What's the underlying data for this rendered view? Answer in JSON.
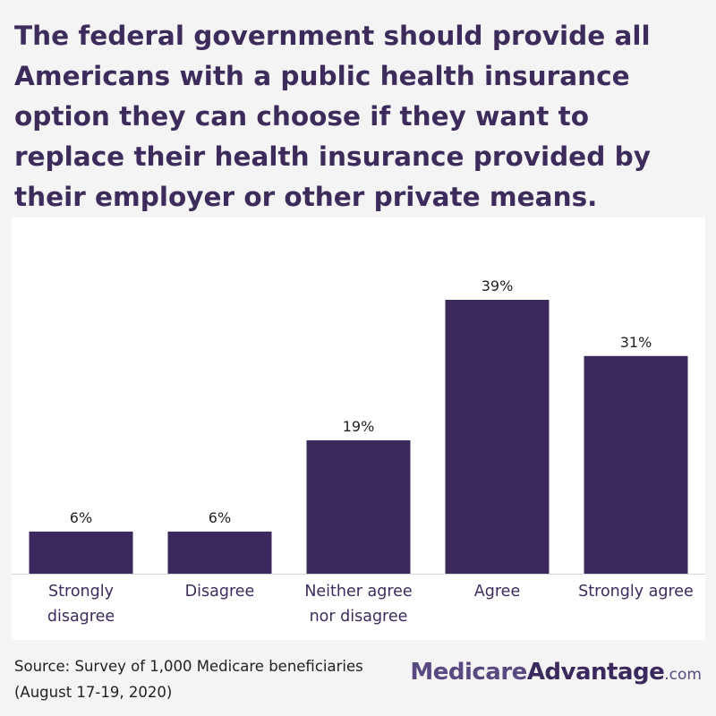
{
  "title": "The federal government should provide all Americans with a public health insurance option they can choose if they want to replace their health insurance provided by their employer or other private means.",
  "source_lines": [
    "Source: Survey of 1,000 Medicare beneficiaries",
    "(August 17-19, 2020)"
  ],
  "brand": {
    "part1": "Medicare",
    "part2": "Advantage",
    "part3": ".com"
  },
  "colors": {
    "bar": "#3b285c",
    "title": "#3d2b5c",
    "brand": "#5a4880"
  },
  "chart_data": {
    "type": "bar",
    "title": "The federal government should provide all Americans with a public health insurance option they can choose if they want to replace their health insurance provided by their employer or other private means.",
    "categories": [
      [
        "Strongly",
        "disagree"
      ],
      [
        "Disagree"
      ],
      [
        "Neither agree",
        "nor disagree"
      ],
      [
        "Agree"
      ],
      [
        "Strongly agree"
      ]
    ],
    "values": [
      6,
      6,
      19,
      39,
      31
    ],
    "value_labels": [
      "6%",
      "6%",
      "19%",
      "39%",
      "31%"
    ],
    "value_unit": "%",
    "xlabel": "",
    "ylabel": "",
    "ylim": [
      0,
      39
    ],
    "grid": false,
    "legend": "none"
  }
}
